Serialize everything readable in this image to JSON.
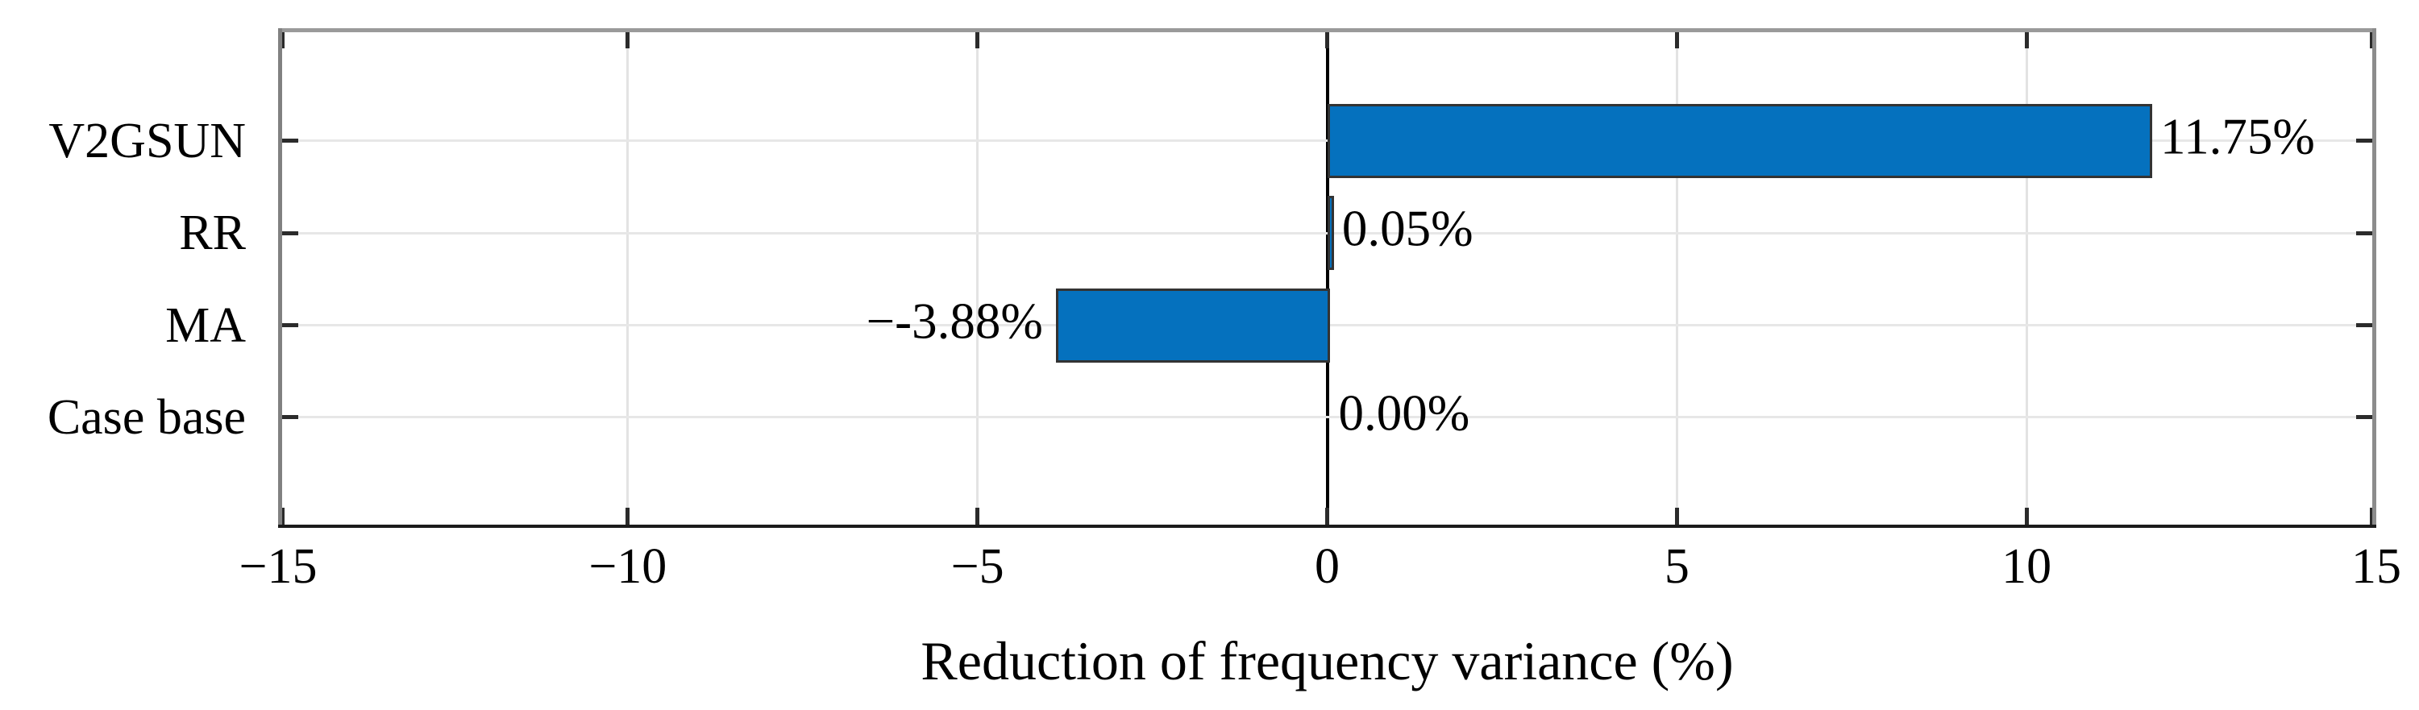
{
  "chart_data": {
    "type": "bar",
    "orientation": "horizontal",
    "title": "",
    "xlabel": "Reduction of frequency variance (%)",
    "ylabel": "",
    "categories": [
      "V2GSUN",
      "RR",
      "MA",
      "Case base"
    ],
    "values": [
      11.75,
      0.05,
      -3.88,
      0.0
    ],
    "value_labels": [
      "11.75%",
      "0.05%",
      "−-3.88%",
      "0.00%"
    ],
    "xlim": [
      -15,
      15
    ],
    "xticks": [
      -15,
      -10,
      -5,
      0,
      5,
      10,
      15
    ],
    "xtick_labels": [
      "−15",
      "−10",
      "−5",
      "0",
      "5",
      "10",
      "15"
    ],
    "grid": true,
    "legend": null,
    "colors": {
      "bar_fill": "#0571BE",
      "bar_edge": "#333333",
      "zero_line": "#000000",
      "grid_line": "#e7e7e7",
      "axis_box": "#9a9a9a",
      "text": "#000000"
    }
  }
}
